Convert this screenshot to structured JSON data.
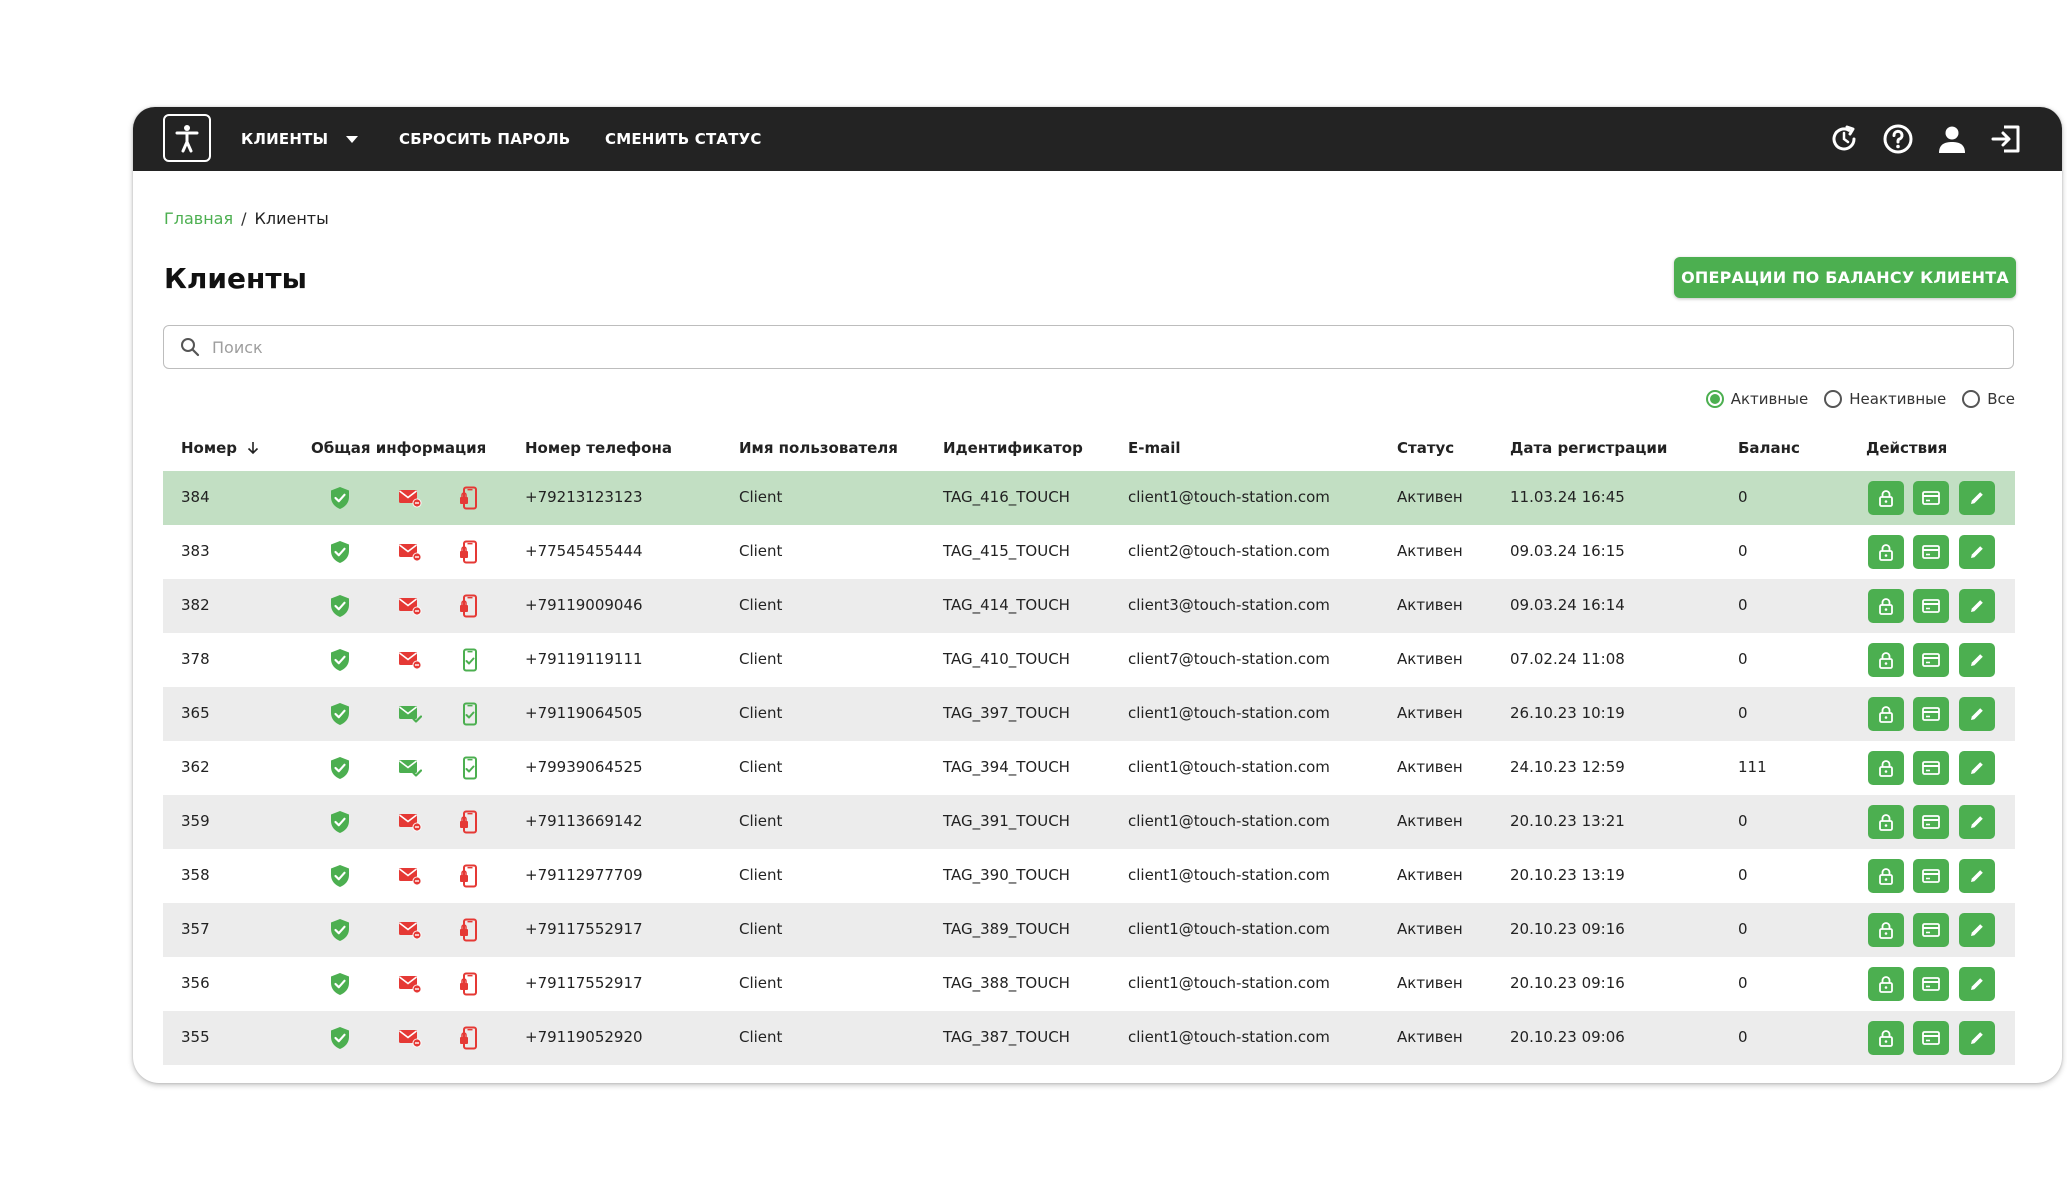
{
  "nav": {
    "logo_icon": "accessibility-icon",
    "clients_label": "КЛИЕНТЫ",
    "reset_password_label": "СБРОСИТЬ ПАРОЛЬ",
    "change_status_label": "СМЕНИТЬ СТАТУС",
    "icons": [
      "refresh-clock-icon",
      "help-icon",
      "user-icon",
      "logout-icon"
    ]
  },
  "breadcrumb": {
    "home": "Главная",
    "separator": "/",
    "current": "Клиенты"
  },
  "page_title": "Клиенты",
  "balance_button": "ОПЕРАЦИИ ПО БАЛАНСУ КЛИЕНТА",
  "search": {
    "placeholder": "Поиск",
    "value": ""
  },
  "filters": {
    "active": "Активные",
    "inactive": "Неактивные",
    "all": "Все",
    "selected": "active"
  },
  "columns": {
    "number": "Номер",
    "general": "Общая информация",
    "phone": "Номер телефона",
    "username": "Имя пользователя",
    "identifier": "Идентификатор",
    "email": "E-mail",
    "status": "Статус",
    "reg_date": "Дата регистрации",
    "balance": "Баланс",
    "actions": "Действия"
  },
  "colors": {
    "accent": "#4caf50",
    "danger": "#e53935",
    "navbar": "#232323",
    "selected_row": "#c2dfc3",
    "stripe": "#ececec"
  },
  "rows": [
    {
      "number": "384",
      "phone": "+79213123123",
      "username": "Client",
      "identifier": "TAG_416_TOUCH",
      "email": "client1@touch-station.com",
      "status": "Активен",
      "reg_date": "11.03.24 16:45",
      "balance": "0",
      "email_ok": false,
      "phone_ok": false
    },
    {
      "number": "383",
      "phone": "+77545455444",
      "username": "Client",
      "identifier": "TAG_415_TOUCH",
      "email": "client2@touch-station.com",
      "status": "Активен",
      "reg_date": "09.03.24 16:15",
      "balance": "0",
      "email_ok": false,
      "phone_ok": false
    },
    {
      "number": "382",
      "phone": "+79119009046",
      "username": "Client",
      "identifier": "TAG_414_TOUCH",
      "email": "client3@touch-station.com",
      "status": "Активен",
      "reg_date": "09.03.24 16:14",
      "balance": "0",
      "email_ok": false,
      "phone_ok": false
    },
    {
      "number": "378",
      "phone": "+79119119111",
      "username": "Client",
      "identifier": "TAG_410_TOUCH",
      "email": "client7@touch-station.com",
      "status": "Активен",
      "reg_date": "07.02.24 11:08",
      "balance": "0",
      "email_ok": false,
      "phone_ok": true
    },
    {
      "number": "365",
      "phone": "+79119064505",
      "username": "Client",
      "identifier": "TAG_397_TOUCH",
      "email": "client1@touch-station.com",
      "status": "Активен",
      "reg_date": "26.10.23 10:19",
      "balance": "0",
      "email_ok": true,
      "phone_ok": true
    },
    {
      "number": "362",
      "phone": "+79939064525",
      "username": "Client",
      "identifier": "TAG_394_TOUCH",
      "email": "client1@touch-station.com",
      "status": "Активен",
      "reg_date": "24.10.23 12:59",
      "balance": "111",
      "email_ok": true,
      "phone_ok": true
    },
    {
      "number": "359",
      "phone": "+79113669142",
      "username": "Client",
      "identifier": "TAG_391_TOUCH",
      "email": "client1@touch-station.com",
      "status": "Активен",
      "reg_date": "20.10.23 13:21",
      "balance": "0",
      "email_ok": false,
      "phone_ok": false
    },
    {
      "number": "358",
      "phone": "+79112977709",
      "username": "Client",
      "identifier": "TAG_390_TOUCH",
      "email": "client1@touch-station.com",
      "status": "Активен",
      "reg_date": "20.10.23 13:19",
      "balance": "0",
      "email_ok": false,
      "phone_ok": false
    },
    {
      "number": "357",
      "phone": "+79117552917",
      "username": "Client",
      "identifier": "TAG_389_TOUCH",
      "email": "client1@touch-station.com",
      "status": "Активен",
      "reg_date": "20.10.23 09:16",
      "balance": "0",
      "email_ok": false,
      "phone_ok": false
    },
    {
      "number": "356",
      "phone": "+79117552917",
      "username": "Client",
      "identifier": "TAG_388_TOUCH",
      "email": "client1@touch-station.com",
      "status": "Активен",
      "reg_date": "20.10.23 09:16",
      "balance": "0",
      "email_ok": false,
      "phone_ok": false
    },
    {
      "number": "355",
      "phone": "+79119052920",
      "username": "Client",
      "identifier": "TAG_387_TOUCH",
      "email": "client1@touch-station.com",
      "status": "Активен",
      "reg_date": "20.10.23 09:06",
      "balance": "0",
      "email_ok": false,
      "phone_ok": false
    }
  ]
}
